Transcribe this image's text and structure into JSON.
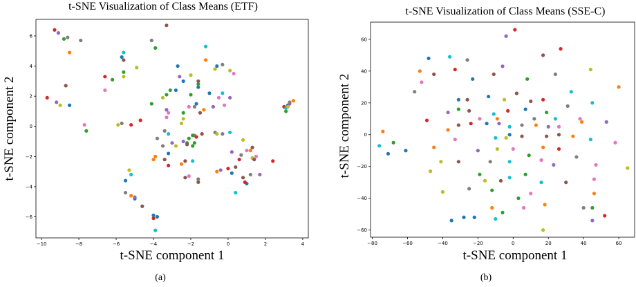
{
  "palette": [
    "#1f77b4",
    "#ff7f0e",
    "#2ca02c",
    "#d62728",
    "#9467bd",
    "#8c564b",
    "#e377c2",
    "#7f7f7f",
    "#bcbd22",
    "#17becf"
  ],
  "chart_data": [
    {
      "type": "scatter",
      "title": "t-SNE Visualization of Class Means (ETF)",
      "xlabel": "t-SNE component 1",
      "ylabel": "t-SNE component 2",
      "caption": "(a)",
      "xlim": [
        -10.3,
        4.3
      ],
      "ylim": [
        -7.4,
        7.1
      ],
      "xticks": [
        -10,
        -8,
        -6,
        -4,
        -2,
        0,
        2,
        4
      ],
      "yticks": [
        -6,
        -4,
        -2,
        0,
        2,
        4,
        6
      ],
      "points": [
        [
          -9.3,
          6.4,
          3
        ],
        [
          -9.1,
          6.2,
          4
        ],
        [
          -8.8,
          5.8,
          2
        ],
        [
          -8.6,
          5.9,
          7
        ],
        [
          -7.9,
          5.7,
          7
        ],
        [
          -8.5,
          4.9,
          1
        ],
        [
          -8.7,
          2.7,
          5
        ],
        [
          -8.5,
          1.4,
          0
        ],
        [
          -9.7,
          1.9,
          3
        ],
        [
          -9.2,
          1.6,
          4
        ],
        [
          -9.0,
          1.4,
          8
        ],
        [
          -7.7,
          0.1,
          6
        ],
        [
          -7.6,
          -0.3,
          2
        ],
        [
          -6.6,
          3.3,
          3
        ],
        [
          -6.6,
          2.4,
          6
        ],
        [
          -6.2,
          3.1,
          2
        ],
        [
          -5.7,
          4.6,
          0
        ],
        [
          -5.6,
          4.9,
          9
        ],
        [
          -5.6,
          4.4,
          5
        ],
        [
          -5.6,
          3.6,
          2
        ],
        [
          -5.6,
          3.3,
          8
        ],
        [
          -4.9,
          3.9,
          8
        ],
        [
          -5.9,
          0.1,
          8
        ],
        [
          -5.7,
          0.2,
          7
        ],
        [
          -5.2,
          0.1,
          3
        ],
        [
          -4.7,
          0.4,
          3
        ],
        [
          -4.1,
          5.7,
          7
        ],
        [
          -3.9,
          5.2,
          2
        ],
        [
          -3.3,
          6.7,
          5
        ],
        [
          -4.1,
          1.5,
          2
        ],
        [
          -3.5,
          1.9,
          8
        ],
        [
          -3.1,
          2.4,
          2
        ],
        [
          -2.8,
          2.4,
          0
        ],
        [
          -2.6,
          3.3,
          4
        ],
        [
          -2.7,
          4.0,
          0
        ],
        [
          -2.0,
          3.4,
          8
        ],
        [
          -1.6,
          2.8,
          2
        ],
        [
          -1.6,
          3.0,
          5
        ],
        [
          -1.2,
          5.3,
          9
        ],
        [
          -1.2,
          4.4,
          1
        ],
        [
          -0.7,
          3.8,
          8
        ],
        [
          -0.6,
          4.0,
          0
        ],
        [
          -0.3,
          4.1,
          7
        ],
        [
          0.1,
          3.7,
          8
        ],
        [
          0.3,
          3.5,
          6
        ],
        [
          -1.6,
          2.6,
          0
        ],
        [
          -2.4,
          3.0,
          0
        ],
        [
          -2.0,
          2.1,
          2
        ],
        [
          -1.7,
          1.5,
          0
        ],
        [
          -1.3,
          1.1,
          1
        ],
        [
          -1.5,
          0.9,
          5
        ],
        [
          -1.0,
          2.2,
          0
        ],
        [
          -0.3,
          2.2,
          9
        ],
        [
          -0.5,
          1.9,
          6
        ],
        [
          -0.2,
          1.4,
          6
        ],
        [
          -0.8,
          1.3,
          4
        ],
        [
          0.1,
          1.9,
          4
        ],
        [
          -2.1,
          1.3,
          6
        ],
        [
          -1.8,
          1.3,
          7
        ],
        [
          -2.4,
          0.9,
          2
        ],
        [
          -3.2,
          0.9,
          6
        ],
        [
          -3.3,
          0.6,
          6
        ],
        [
          -3.3,
          1.1,
          4
        ],
        [
          -3.3,
          2.1,
          2
        ],
        [
          -2.5,
          0.2,
          8
        ],
        [
          -2.4,
          0.5,
          8
        ],
        [
          -3.4,
          -0.3,
          7
        ],
        [
          -3.2,
          -0.5,
          9
        ],
        [
          -3.0,
          -1.1,
          4
        ],
        [
          -3.8,
          -0.8,
          7
        ],
        [
          -1.8,
          -0.6,
          7
        ],
        [
          -1.7,
          -0.7,
          3
        ],
        [
          -1.4,
          -0.5,
          5
        ],
        [
          -0.7,
          -0.4,
          7
        ],
        [
          -0.6,
          -0.5,
          8
        ],
        [
          -0.3,
          -0.5,
          7
        ],
        [
          0.1,
          -0.4,
          9
        ],
        [
          -2.1,
          -0.8,
          2
        ],
        [
          -2.4,
          -1.0,
          4
        ],
        [
          -2.2,
          -1.1,
          2
        ],
        [
          -1.9,
          -0.6,
          2
        ],
        [
          -2.8,
          -1.3,
          8
        ],
        [
          -1.8,
          -1.1,
          2
        ],
        [
          -2.2,
          -1.2,
          5
        ],
        [
          -1.9,
          -1.3,
          2
        ],
        [
          -1.6,
          -3.7,
          5
        ],
        [
          -1.6,
          -3.5,
          7
        ],
        [
          -1.9,
          -2.3,
          9
        ],
        [
          -2.3,
          -3.4,
          5
        ],
        [
          -2.1,
          -3.3,
          6
        ],
        [
          -3.9,
          -2.0,
          1
        ],
        [
          -4.0,
          -2.2,
          1
        ],
        [
          -3.4,
          -2.2,
          5
        ],
        [
          -3.2,
          -2.6,
          3
        ],
        [
          -2.5,
          -2.5,
          1
        ],
        [
          -2.3,
          -2.3,
          5
        ],
        [
          -0.4,
          -2.9,
          4
        ],
        [
          -0.6,
          -3.0,
          1
        ],
        [
          0.0,
          -2.8,
          3
        ],
        [
          0.4,
          -2.7,
          5
        ],
        [
          0.6,
          -2.2,
          3
        ],
        [
          1.3,
          -2.1,
          8
        ],
        [
          0.2,
          -3.1,
          0
        ],
        [
          0.8,
          -3.4,
          5
        ],
        [
          1.0,
          -3.8,
          0
        ],
        [
          1.5,
          -2.0,
          6
        ],
        [
          1.4,
          -2.2,
          5
        ],
        [
          1.2,
          -3.2,
          7
        ],
        [
          1.7,
          -3.2,
          4
        ],
        [
          0.9,
          -3.7,
          3
        ],
        [
          0.4,
          -4.4,
          9
        ],
        [
          2.4,
          -2.3,
          3
        ],
        [
          0.8,
          -0.9,
          8
        ],
        [
          0.2,
          -1.7,
          4
        ],
        [
          1.2,
          -1.6,
          1
        ],
        [
          1.3,
          -1.4,
          5
        ],
        [
          1.0,
          -1.6,
          6
        ],
        [
          0.7,
          -1.9,
          7
        ],
        [
          -3.5,
          -1.3,
          7
        ],
        [
          -3.2,
          -1.8,
          0
        ],
        [
          -5.3,
          -2.9,
          8
        ],
        [
          -5.2,
          -3.2,
          9
        ],
        [
          -5.2,
          -4.6,
          1
        ],
        [
          -5.0,
          -4.8,
          0
        ],
        [
          -5.5,
          -4.4,
          7
        ],
        [
          -5.0,
          -4.7,
          4
        ],
        [
          -4.6,
          -5.3,
          5
        ],
        [
          -4.0,
          -5.9,
          0
        ],
        [
          -4.0,
          -6.1,
          3
        ],
        [
          -3.8,
          -6.0,
          0
        ],
        [
          -3.9,
          -6.9,
          9
        ],
        [
          -5.5,
          -3.6,
          0
        ],
        [
          3.0,
          1.3,
          3
        ],
        [
          3.1,
          1.0,
          2
        ],
        [
          3.2,
          1.4,
          0
        ],
        [
          3.1,
          1.2,
          9
        ],
        [
          3.3,
          1.5,
          4
        ],
        [
          3.5,
          1.7,
          1
        ],
        [
          3.2,
          1.3,
          8
        ],
        [
          3.3,
          1.6,
          7
        ]
      ]
    },
    {
      "type": "scatter",
      "title": "t-SNE Visualization of Class Means (SSE-C)",
      "xlabel": "t-SNE component 1",
      "ylabel": "t-SNE component 2",
      "caption": "(b)",
      "xlim": [
        -81,
        69
      ],
      "ylim": [
        -64.5,
        70.8
      ],
      "xticks": [
        -80,
        -60,
        -40,
        -20,
        0,
        20,
        40,
        60
      ],
      "yticks": [
        -60,
        -40,
        -20,
        0,
        20,
        40,
        60
      ],
      "points": [
        [
          1,
          66,
          3
        ],
        [
          27,
          54,
          3
        ],
        [
          -4,
          62,
          4
        ],
        [
          17,
          50,
          5
        ],
        [
          -48,
          48,
          0
        ],
        [
          -36,
          49,
          9
        ],
        [
          -26,
          47,
          7
        ],
        [
          -53,
          40,
          1
        ],
        [
          -45,
          38,
          5
        ],
        [
          -33,
          41,
          3
        ],
        [
          -11,
          38,
          5
        ],
        [
          -6,
          43,
          4
        ],
        [
          24,
          38,
          7
        ],
        [
          44,
          41,
          8
        ],
        [
          -56,
          27,
          7
        ],
        [
          -52,
          33,
          6
        ],
        [
          -23,
          35,
          0
        ],
        [
          8,
          35,
          2
        ],
        [
          -31,
          22,
          0
        ],
        [
          -26,
          22,
          5
        ],
        [
          -14,
          24,
          0
        ],
        [
          -5,
          22,
          8
        ],
        [
          2,
          26,
          5
        ],
        [
          10,
          21,
          5
        ],
        [
          17,
          22,
          3
        ],
        [
          33,
          27,
          9
        ],
        [
          31,
          18,
          7
        ],
        [
          45,
          20,
          9
        ],
        [
          60,
          30,
          1
        ],
        [
          -49,
          9,
          3
        ],
        [
          -37,
          14,
          4
        ],
        [
          -31,
          16,
          2
        ],
        [
          -25,
          15,
          5
        ],
        [
          -19,
          10,
          6
        ],
        [
          -11,
          13,
          9
        ],
        [
          -9,
          10,
          1
        ],
        [
          -3,
          15,
          3
        ],
        [
          7,
          16,
          0
        ],
        [
          12,
          10,
          7
        ],
        [
          19,
          14,
          2
        ],
        [
          24,
          10,
          9
        ],
        [
          38,
          10,
          6
        ],
        [
          20,
          5,
          4
        ],
        [
          -74,
          2,
          1
        ],
        [
          -68,
          -5,
          2
        ],
        [
          -71,
          -12,
          0
        ],
        [
          -76,
          -7,
          9
        ],
        [
          -61,
          -10,
          0
        ],
        [
          -45,
          -8,
          1
        ],
        [
          -37,
          3,
          1
        ],
        [
          -31,
          6,
          5
        ],
        [
          -24,
          7,
          3
        ],
        [
          -15,
          7,
          0
        ],
        [
          -8,
          7,
          4
        ],
        [
          -2,
          5,
          9
        ],
        [
          5,
          6,
          7
        ],
        [
          13,
          6,
          1
        ],
        [
          19,
          -1,
          5
        ],
        [
          26,
          5,
          6
        ],
        [
          26,
          0,
          5
        ],
        [
          34,
          -1,
          1
        ],
        [
          39,
          8,
          1
        ],
        [
          53,
          8,
          4
        ],
        [
          -10,
          -2,
          9
        ],
        [
          -4,
          -2,
          8
        ],
        [
          -2,
          0,
          0
        ],
        [
          5,
          -1,
          5
        ],
        [
          -41,
          -17,
          8
        ],
        [
          -33,
          -3,
          6
        ],
        [
          -31,
          -17,
          5
        ],
        [
          -20,
          -10,
          4
        ],
        [
          -13,
          -17,
          7
        ],
        [
          -9,
          -9,
          8
        ],
        [
          0,
          -9,
          6
        ],
        [
          -2,
          -17,
          9
        ],
        [
          9,
          -13,
          2
        ],
        [
          17,
          -8,
          1
        ],
        [
          26,
          -9,
          3
        ],
        [
          36,
          -14,
          7
        ],
        [
          16,
          -16,
          6
        ],
        [
          23,
          -19,
          4
        ],
        [
          44,
          -3,
          9
        ],
        [
          47,
          -19,
          6
        ],
        [
          58,
          -5,
          6
        ],
        [
          65,
          -21,
          8
        ],
        [
          -47,
          -23,
          8
        ],
        [
          -40,
          -36,
          8
        ],
        [
          -25,
          -34,
          7
        ],
        [
          -19,
          -25,
          2
        ],
        [
          -12,
          -35,
          2
        ],
        [
          -7,
          -29,
          5
        ],
        [
          -2,
          -27,
          9
        ],
        [
          7,
          -25,
          2
        ],
        [
          10,
          -37,
          6
        ],
        [
          16,
          -30,
          9
        ],
        [
          18,
          -44,
          1
        ],
        [
          30,
          -30,
          5
        ],
        [
          40,
          -46,
          7
        ],
        [
          46,
          -37,
          1
        ],
        [
          -28,
          -52,
          0
        ],
        [
          -22,
          -52,
          0
        ],
        [
          -12,
          -46,
          1
        ],
        [
          -10,
          -53,
          9
        ],
        [
          -6,
          -49,
          2
        ],
        [
          3,
          -40,
          2
        ],
        [
          6,
          -46,
          6
        ],
        [
          17,
          -60,
          8
        ],
        [
          -35,
          -54,
          0
        ],
        [
          45,
          -46,
          2
        ],
        [
          45,
          -54,
          4
        ],
        [
          52,
          -51,
          3
        ],
        [
          46,
          -28,
          6
        ],
        [
          -16,
          -29,
          8
        ]
      ]
    }
  ]
}
